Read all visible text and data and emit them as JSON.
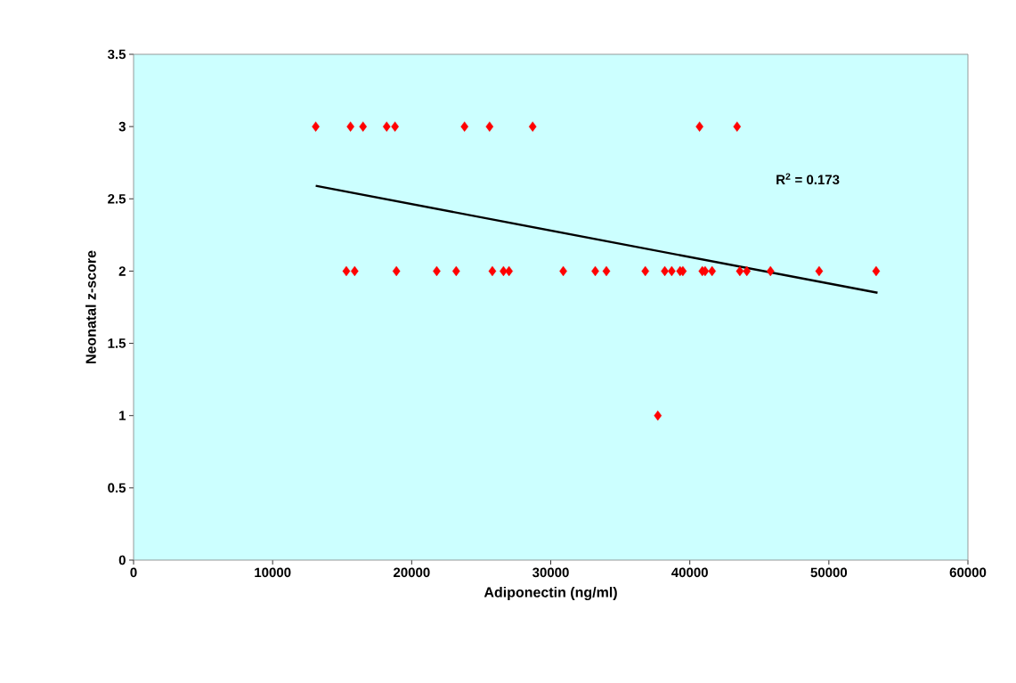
{
  "chart_data": {
    "type": "scatter",
    "xlabel": "Adiponectin (ng/ml)",
    "ylabel": "Neonatal z-score",
    "annotations": [
      "R$^{2}$ = 0.173"
    ],
    "series": [
      {
        "color": "#ff0000",
        "marker": "diamond",
        "x": [
          13100,
          15600,
          16500,
          18200,
          18800,
          23800,
          25600,
          28700,
          40700,
          43400,
          15300,
          15900,
          18900,
          21800,
          23200,
          25800,
          26600,
          27000,
          30900,
          33200,
          34000,
          36800,
          38200,
          38700,
          39300,
          39500,
          40900,
          41100,
          41600,
          43600,
          44100,
          45800,
          49300,
          53400,
          37700
        ],
        "values": [
          3,
          3,
          3,
          3,
          3,
          3,
          3,
          3,
          3,
          3,
          2,
          2,
          2,
          2,
          2,
          2,
          2,
          2,
          2,
          2,
          2,
          2,
          2,
          2,
          2,
          2,
          2,
          2,
          2,
          2,
          2,
          2,
          2,
          2,
          1
        ]
      },
      {
        "type": "line",
        "color": "#000000",
        "marker": "none",
        "x": [
          13100,
          53500
        ],
        "values": [
          2.59,
          1.85
        ]
      }
    ],
    "xlim": [
      0,
      60000
    ],
    "xticks": [
      0,
      10000,
      20000,
      30000,
      40000,
      50000,
      60000
    ],
    "ylim": [
      0,
      3.5
    ],
    "yticks": [
      0,
      0.5,
      1,
      1.5,
      2,
      2.5,
      3,
      3.5
    ],
    "grid": false
  }
}
